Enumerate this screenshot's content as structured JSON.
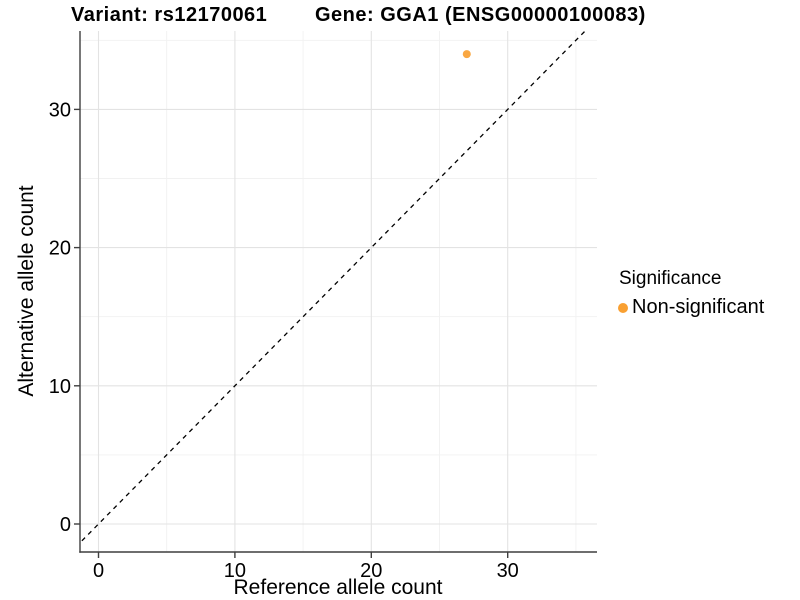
{
  "header": {
    "variant_title": "Variant: rs12170061",
    "gene_title": "Gene: GGA1 (ENSG00000100083)"
  },
  "chart_data": {
    "type": "scatter",
    "title": "Variant: rs12170061 — Gene: GGA1 (ENSG00000100083)",
    "xlabel": "Reference allele count",
    "ylabel": "Alternative allele count",
    "xlim": [
      -1.9,
      36.6
    ],
    "ylim": [
      -2.0,
      35.7
    ],
    "x_ticks": [
      0,
      10,
      20,
      30
    ],
    "y_ticks": [
      0,
      10,
      20,
      30
    ],
    "x_tick_labels": [
      "0",
      "10",
      "20",
      "30"
    ],
    "y_tick_labels": [
      "0",
      "10",
      "20",
      "30"
    ],
    "x_minor_ticks": [
      5,
      15,
      25,
      35
    ],
    "y_minor_ticks": [
      5,
      15,
      25,
      35
    ],
    "grid": true,
    "points": [
      {
        "x": 27,
        "y": 34,
        "significance": "Non-significant"
      }
    ],
    "reference_line": {
      "kind": "identity y=x",
      "slope": 1,
      "intercept": 0,
      "style": "dashed",
      "color": "#000000"
    },
    "legend": {
      "position": "right",
      "title": "Significance",
      "entries": [
        {
          "label": "Non-significant",
          "color": "#F9A032"
        }
      ]
    }
  },
  "colors": {
    "point": "#F9A032",
    "grid_major": "#E3E3E3",
    "grid_minor": "#F1F1F1",
    "axis": "#3F3F3F",
    "tick_text": "#000000",
    "dashed_line": "#000000",
    "background": "#FFFFFF"
  }
}
